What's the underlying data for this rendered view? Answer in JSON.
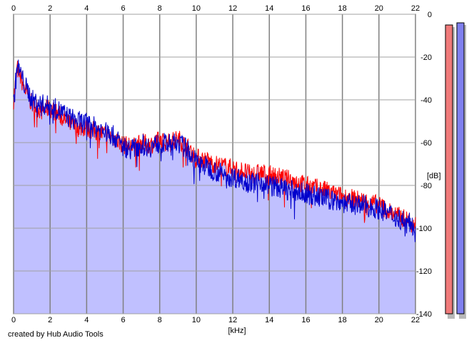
{
  "credit": "created by Hub Audio Tools",
  "colors": {
    "background": "#ffffff",
    "fill": "#c0c0ff",
    "grid": "#a0a0a0",
    "grid_major": "#808080",
    "left_channel": "#ff0000",
    "right_channel": "#0000cc",
    "meter_left": "#f07a7a",
    "meter_right": "#8080ee"
  },
  "chart_data": {
    "type": "line",
    "title": "",
    "xlabel": "[kHz]",
    "ylabel": "[dB]",
    "xlim": [
      0,
      22
    ],
    "ylim": [
      -140,
      0
    ],
    "x_ticks": [
      "0",
      "2",
      "4",
      "6",
      "8",
      "10",
      "12",
      "14",
      "16",
      "18",
      "20",
      "22"
    ],
    "y_ticks": [
      "0",
      "-20",
      "-40",
      "-60",
      "-80",
      "-100",
      "-120",
      "-140"
    ],
    "x_tick_values": [
      0,
      2,
      4,
      6,
      8,
      10,
      12,
      14,
      16,
      18,
      20,
      22
    ],
    "y_tick_values": [
      0,
      -20,
      -40,
      -60,
      -80,
      -100,
      -120,
      -140
    ],
    "grid": true,
    "filled_area": true,
    "series": [
      {
        "color": "#ff0000",
        "x": [
          0,
          0.2,
          0.4,
          0.6,
          0.8,
          1,
          1.5,
          2,
          2.5,
          3,
          3.5,
          4,
          4.5,
          5,
          5.5,
          6,
          6.5,
          7,
          7.5,
          8,
          8.5,
          9,
          9.5,
          10,
          10.5,
          11,
          11.5,
          12,
          12.5,
          13,
          13.5,
          14,
          14.5,
          15,
          15.5,
          16,
          16.5,
          17,
          17.5,
          18,
          18.5,
          19,
          19.5,
          20,
          20.5,
          21,
          21.5,
          22
        ],
        "values": [
          -40,
          -25,
          -30,
          -35,
          -38,
          -42,
          -45,
          -44,
          -47,
          -51,
          -53,
          -53,
          -55,
          -56,
          -58,
          -61,
          -62,
          -60,
          -61,
          -59,
          -60,
          -58,
          -62,
          -67,
          -68,
          -70,
          -71,
          -72,
          -73,
          -75,
          -74,
          -75,
          -76,
          -77,
          -78,
          -80,
          -81,
          -82,
          -84,
          -85,
          -86,
          -87,
          -88,
          -89,
          -92,
          -94,
          -96,
          -98
        ]
      },
      {
        "color": "#0000cc",
        "x": [
          0,
          0.2,
          0.4,
          0.6,
          0.8,
          1,
          1.5,
          2,
          2.5,
          3,
          3.5,
          4,
          4.5,
          5,
          5.5,
          6,
          6.5,
          7,
          7.5,
          8,
          8.5,
          9,
          9.5,
          10,
          10.5,
          11,
          11.5,
          12,
          12.5,
          13,
          13.5,
          14,
          14.5,
          15,
          15.5,
          16,
          16.5,
          17,
          17.5,
          18,
          18.5,
          19,
          19.5,
          20,
          20.5,
          21,
          21.5,
          22
        ],
        "values": [
          -42,
          -24,
          -28,
          -33,
          -36,
          -40,
          -42,
          -43,
          -45,
          -48,
          -50,
          -51,
          -53,
          -55,
          -57,
          -62,
          -63,
          -61,
          -62,
          -60,
          -61,
          -60,
          -63,
          -69,
          -71,
          -73,
          -75,
          -76,
          -77,
          -79,
          -78,
          -80,
          -81,
          -82,
          -83,
          -84,
          -85,
          -86,
          -87,
          -88,
          -89,
          -89,
          -90,
          -91,
          -93,
          -95,
          -97,
          -99
        ]
      }
    ],
    "meters": [
      {
        "color": "#f07a7a",
        "top_db": -5
      },
      {
        "color": "#8080ee",
        "top_db": -4
      }
    ]
  }
}
